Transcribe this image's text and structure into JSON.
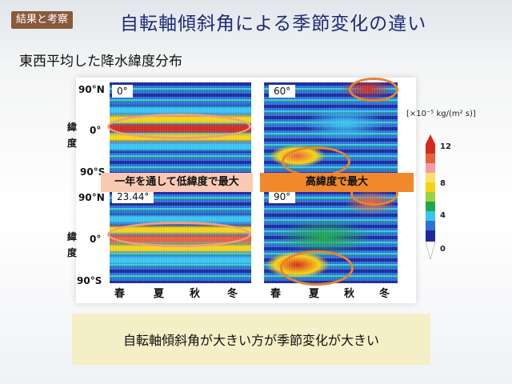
{
  "tag": "結果と考察",
  "title": "自転軸傾斜角による季節変化の違い",
  "subtitle": "東西平均した降水緯度分布",
  "panels": [
    {
      "label": "0°"
    },
    {
      "label": "60°"
    },
    {
      "label": "23.44°"
    },
    {
      "label": "90°"
    }
  ],
  "y_axis": {
    "north": "90°N",
    "equator": "0°",
    "south": "90°S",
    "name_top": "緯",
    "name_bottom": "度"
  },
  "seasons": [
    "春",
    "夏",
    "秋",
    "冬"
  ],
  "callouts": {
    "left": "一年を通して低緯度で最大",
    "right": "高緯度で最大"
  },
  "legend": {
    "unit": "[×10⁻⁵ kg/(m² s)]",
    "ticks": [
      "12",
      "8",
      "4",
      "0"
    ],
    "colors": [
      "#d62a1c",
      "#f29ca4",
      "#f5d314",
      "#1fa84a",
      "#39c3ef",
      "#2e6fd8",
      "#1a2a9c",
      "#ffffff"
    ]
  },
  "conclusion": "自転軸傾斜角が大きい方が季節変化が大きい",
  "colors": {
    "title": "#1e2a78",
    "tag_bg": "#8a5a3c",
    "callout_left": "#f9c9b4",
    "callout_right": "#f0892c",
    "conclusion_bg": "#f5efc7"
  }
}
